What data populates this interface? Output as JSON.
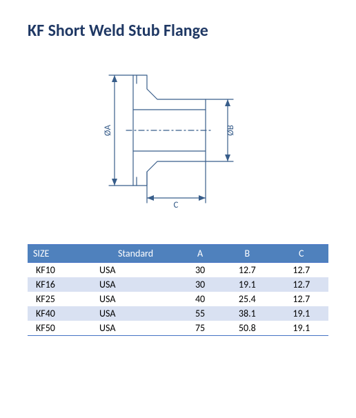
{
  "title": "KF Short Weld Stub Flange",
  "diagram": {
    "labels": {
      "dimA": "ØA",
      "dimB": "ØB",
      "dimC": "C"
    },
    "stroke": "#385d8a",
    "stroke_width": 1.2,
    "text_color": "#385d8a",
    "font_size": 13
  },
  "table": {
    "header_bg": "#4f81bd",
    "header_fg": "#ffffff",
    "border_color": "#4472c4",
    "row_alt_bg": "#d9e1f2",
    "columns": [
      "SIZE",
      "Standard",
      "A",
      "B",
      "C"
    ],
    "rows": [
      [
        "KF10",
        "USA",
        "30",
        "12.7",
        "12.7"
      ],
      [
        "KF16",
        "USA",
        "30",
        "19.1",
        "12.7"
      ],
      [
        "KF25",
        "USA",
        "40",
        "25.4",
        "12.7"
      ],
      [
        "KF40",
        "USA",
        "55",
        "38.1",
        "19.1"
      ],
      [
        "KF50",
        "USA",
        "75",
        "50.8",
        "19.1"
      ]
    ]
  }
}
